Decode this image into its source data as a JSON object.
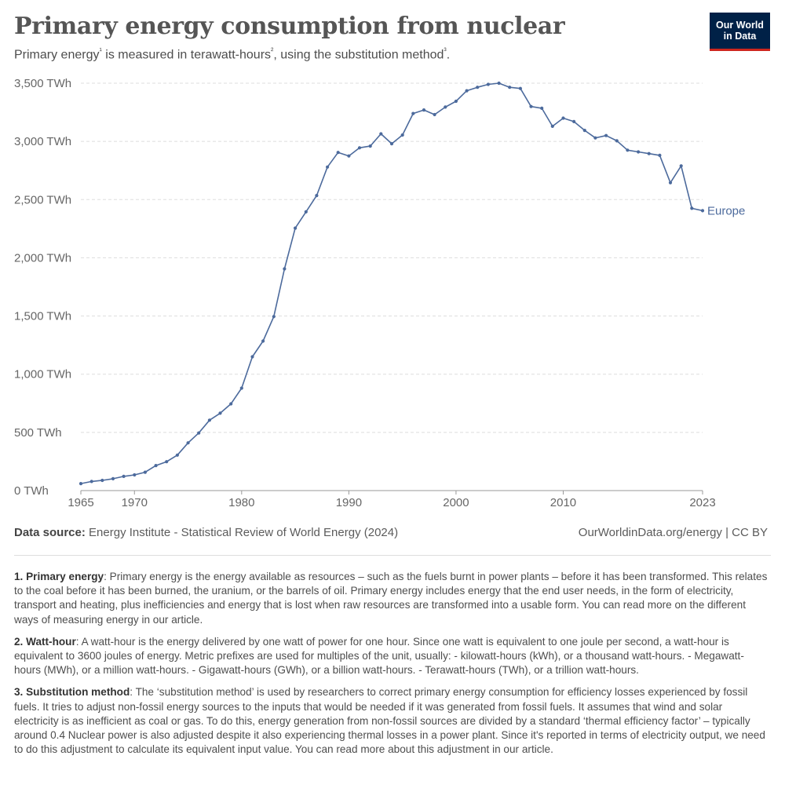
{
  "header": {
    "title": "Primary energy consumption from nuclear",
    "subtitle_parts": [
      "Primary energy",
      "¹",
      " is measured in terawatt-hours",
      "²",
      ", using the substitution method",
      "³",
      "."
    ],
    "logo_line1": "Our World",
    "logo_line2": "in Data"
  },
  "colors": {
    "series": "#4c6a9c",
    "logo_bg": "#002147",
    "logo_accent": "#ce261e",
    "grid": "#dddddd"
  },
  "chart_data": {
    "type": "line",
    "title": "Primary energy consumption from nuclear",
    "ylabel": "",
    "xlabel": "",
    "unit": "TWh",
    "ylim": [
      0,
      3500
    ],
    "xlim": [
      1965,
      2023
    ],
    "grid": true,
    "y_ticks": [
      0,
      500,
      1000,
      1500,
      2000,
      2500,
      3000,
      3500
    ],
    "y_tick_labels": [
      "0 TWh",
      "500 TWh",
      "1,000 TWh",
      "1,500 TWh",
      "2,000 TWh",
      "2,500 TWh",
      "3,000 TWh",
      "3,500 TWh"
    ],
    "x_ticks": [
      1965,
      1970,
      1980,
      1990,
      2000,
      2010,
      2023
    ],
    "x_tick_labels": [
      "1965",
      "1970",
      "1980",
      "1990",
      "2000",
      "2010",
      "2023"
    ],
    "legend_placement": "end-of-line",
    "series": [
      {
        "name": "Europe",
        "color": "#4c6a9c",
        "x": [
          1965,
          1966,
          1967,
          1968,
          1969,
          1970,
          1971,
          1972,
          1973,
          1974,
          1975,
          1976,
          1977,
          1978,
          1979,
          1980,
          1981,
          1982,
          1983,
          1984,
          1985,
          1986,
          1987,
          1988,
          1989,
          1990,
          1991,
          1992,
          1993,
          1994,
          1995,
          1996,
          1997,
          1998,
          1999,
          2000,
          2001,
          2002,
          2003,
          2004,
          2005,
          2006,
          2007,
          2008,
          2009,
          2010,
          2011,
          2012,
          2013,
          2014,
          2015,
          2016,
          2017,
          2018,
          2019,
          2020,
          2021,
          2022,
          2023
        ],
        "values": [
          60,
          78,
          88,
          102,
          122,
          135,
          158,
          215,
          248,
          305,
          410,
          495,
          605,
          665,
          745,
          880,
          1150,
          1285,
          1495,
          1905,
          2255,
          2395,
          2535,
          2780,
          2905,
          2875,
          2945,
          2960,
          3065,
          2980,
          3055,
          3240,
          3270,
          3230,
          3295,
          3345,
          3435,
          3465,
          3490,
          3500,
          3465,
          3455,
          3300,
          3285,
          3130,
          3200,
          3170,
          3095,
          3030,
          3050,
          3005,
          2925,
          2910,
          2895,
          2880,
          2645,
          2790,
          2425,
          2405
        ]
      }
    ]
  },
  "footer": {
    "source_label": "Data source:",
    "source_text": "Energy Institute - Statistical Review of World Energy (2024)",
    "credit": "OurWorldinData.org/energy | CC BY"
  },
  "notes": [
    {
      "label": "1. Primary energy",
      "text": ": Primary energy is the energy available as resources – such as the fuels burnt in power plants – before it has been transformed. This relates to the coal before it has been burned, the uranium, or the barrels of oil. Primary energy includes energy that the end user needs, in the form of electricity, transport and heating, plus inefficiencies and energy that is lost when raw resources are transformed into a usable form. You can read more on the different ways of measuring energy in our article."
    },
    {
      "label": "2. Watt-hour",
      "text": ": A watt-hour is the energy delivered by one watt of power for one hour. Since one watt is equivalent to one joule per second, a watt-hour is equivalent to 3600 joules of energy. Metric prefixes are used for multiples of the unit, usually: - kilowatt-hours (kWh), or a thousand watt-hours. - Megawatt-hours (MWh), or a million watt-hours. - Gigawatt-hours (GWh), or a billion watt-hours. - Terawatt-hours (TWh), or a trillion watt-hours."
    },
    {
      "label": "3. Substitution method",
      "text": ": The ‘substitution method’ is used by researchers to correct primary energy consumption for efficiency losses experienced by fossil fuels. It tries to adjust non-fossil energy sources to the inputs that would be needed if it was generated from fossil fuels. It assumes that wind and solar electricity is as inefficient as coal or gas. To do this, energy generation from non-fossil sources are divided by a standard ‘thermal efficiency factor’ – typically around 0.4 Nuclear power is also adjusted despite it also experiencing thermal losses in a power plant. Since it's reported in terms of electricity output, we need to do this adjustment to calculate its equivalent input value. You can read more about this adjustment in our article."
    }
  ]
}
